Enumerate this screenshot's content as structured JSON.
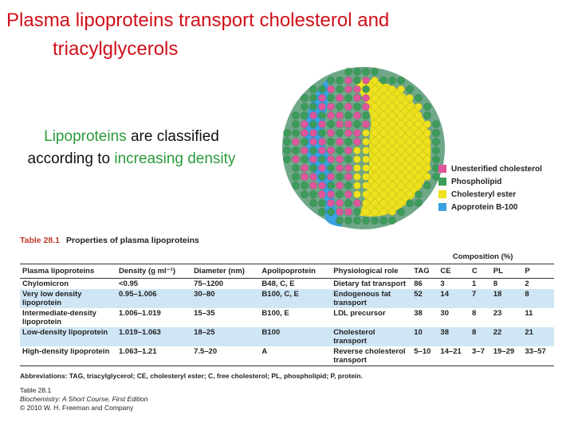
{
  "title": {
    "lines": [
      "Plasma lipoproteins transport cholesterol and",
      "triacylglycerols"
    ]
  },
  "subtitle": {
    "parts": [
      "Lipoproteins",
      " are classified according to ",
      "increasing density"
    ]
  },
  "legend": [
    {
      "label": "Unesterified cholesterol",
      "color": "#e0569c"
    },
    {
      "label": "Phospholipid",
      "color": "#3c9c5a"
    },
    {
      "label": "Cholesteryl ester",
      "color": "#eee21e"
    },
    {
      "label": "Apoprotein B-100",
      "color": "#3aa2de"
    }
  ],
  "table": {
    "number": "Table 28.1",
    "caption": "Properties of plasma lipoproteins",
    "group_header": "Composition (%)",
    "columns": [
      "Plasma lipoproteins",
      "Density (g ml⁻¹)",
      "Diameter (nm)",
      "Apolipoprotein",
      "Physiological role",
      "TAG",
      "CE",
      "C",
      "PL",
      "P"
    ],
    "rows": [
      [
        "Chylomicron",
        "<0.95",
        "75–1200",
        "B48, C, E",
        "Dietary fat transport",
        86,
        3,
        1,
        8,
        2
      ],
      [
        "Very low density lipoprotein",
        "0.95–1.006",
        "30–80",
        "B100, C, E",
        "Endogenous fat transport",
        52,
        14,
        7,
        18,
        8
      ],
      [
        "Intermediate-density lipoprotein",
        "1.006–1.019",
        "15–35",
        "B100, E",
        "LDL precursor",
        38,
        30,
        8,
        23,
        11
      ],
      [
        "Low-density lipoprotein",
        "1.019–1.063",
        "18–25",
        "B100",
        "Cholesterol transport",
        10,
        38,
        8,
        22,
        21
      ],
      [
        "High-density lipoprotein",
        "1.063–1.21",
        "7.5–20",
        "A",
        "Reverse cholesterol transport",
        "5–10",
        "14–21",
        "3–7",
        "19–29",
        "33–57"
      ]
    ],
    "abbreviations": "Abbreviations: TAG, triacylglycerol; CE, cholesteryl ester; C, free cholesterol; PL, phospholipid; P, protein.",
    "source": [
      "Table 28.1",
      "Biochemistry: A Short Course, First Edition",
      "© 2010 W. H. Freeman and Company"
    ]
  }
}
